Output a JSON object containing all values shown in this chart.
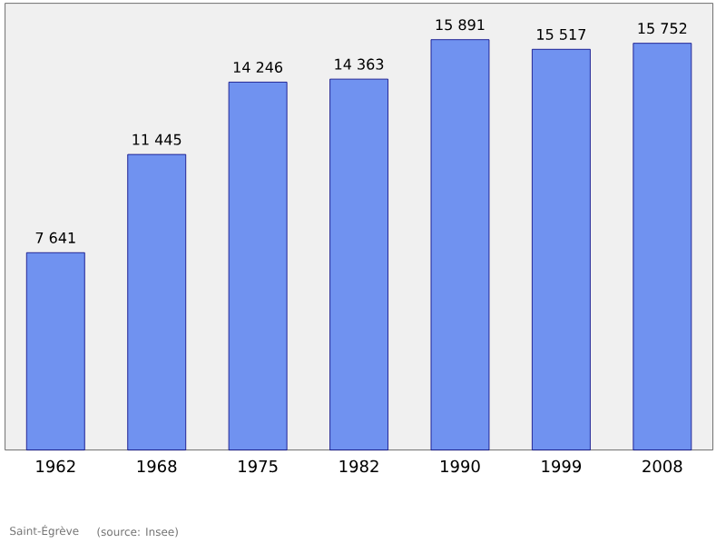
{
  "chart_data": {
    "type": "bar",
    "categories": [
      "1962",
      "1968",
      "1975",
      "1982",
      "1990",
      "1999",
      "2008"
    ],
    "values": [
      7641,
      11445,
      14246,
      14363,
      15891,
      15517,
      15752
    ],
    "value_labels": [
      "7 641",
      "11 445",
      "14 246",
      "14 363",
      "15 891",
      "15 517",
      "15 752"
    ],
    "color": "#7092f0",
    "ylim": [
      0,
      17300
    ],
    "annotations": [
      "Saint-Égrève",
      "(source: Insee)"
    ]
  }
}
